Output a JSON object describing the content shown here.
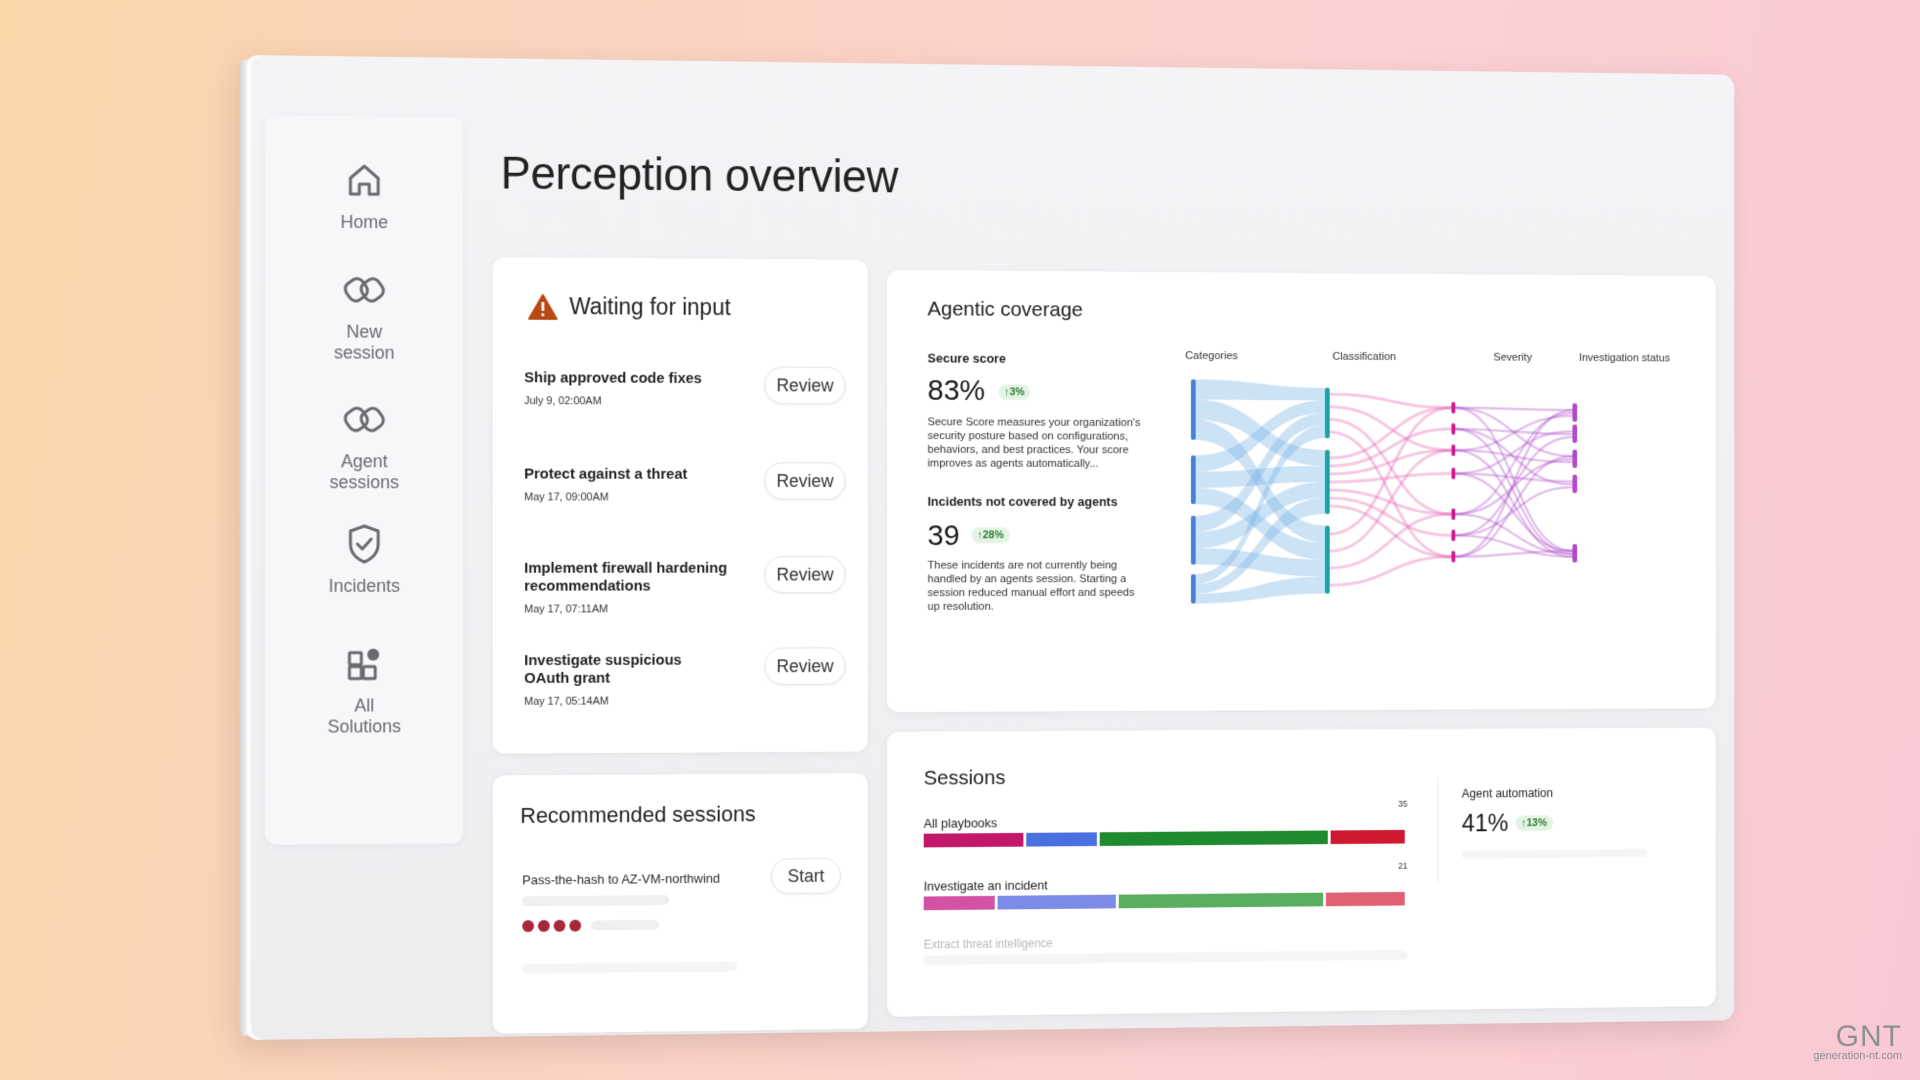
{
  "page": {
    "title": "Perception overview"
  },
  "sidebar": {
    "items": [
      {
        "label": "Home",
        "icon": "home-icon"
      },
      {
        "label": "New\nsession",
        "icon": "sessions-icon"
      },
      {
        "label": "Agent\nsessions",
        "icon": "sessions-icon"
      },
      {
        "label": "Incidents",
        "icon": "shield-check-icon"
      },
      {
        "label": "All\nSolutions",
        "icon": "apps-icon"
      }
    ]
  },
  "waiting": {
    "title": "Waiting for input",
    "icon": "warning-icon",
    "items": [
      {
        "name": "Ship approved code fixes",
        "date": "July 9, 02:00AM",
        "action": "Review"
      },
      {
        "name": "Protect against a threat",
        "date": "May 17, 09:00AM",
        "action": "Review"
      },
      {
        "name": "Implement firewall hardening recommendations",
        "date": "May 17, 07:11AM",
        "action": "Review"
      },
      {
        "name": "Investigate suspicious OAuth grant",
        "date": "May 17, 05:14AM",
        "action": "Review"
      }
    ]
  },
  "agentic": {
    "title": "Agentic coverage",
    "secure_score": {
      "label": "Secure score",
      "value": "83%",
      "delta": "↑3%",
      "description": "Secure Score measures your organization's security posture based on configurations, behaviors, and best practices. Your score improves as agents automatically..."
    },
    "incidents": {
      "label": "Incidents not covered by agents",
      "value": "39",
      "delta": "↑28%",
      "description": "These incidents are not currently being handled by an agents session. Starting a session reduced manual effort and speeds up resolution."
    },
    "sankey_headers": [
      "Categories",
      "Classification",
      "Severity",
      "Investigation status"
    ],
    "colors": {
      "blue": "#7ab3e6",
      "teal": "#1aa3a3",
      "pink": "#e85fb0",
      "purple": "#b04ac8",
      "node_blue": "#4a7fd6",
      "node_magenta": "#d4198f"
    }
  },
  "recommended": {
    "title": "Recommended sessions",
    "item": {
      "label": "Pass-the-hash to AZ-VM-northwind",
      "action": "Start"
    }
  },
  "sessions": {
    "title": "Sessions",
    "rows": [
      {
        "label": "All playbooks",
        "count": "35",
        "segments": [
          {
            "color": "#c2186b",
            "fraction": 0.21
          },
          {
            "color": "#4a6fe0",
            "fraction": 0.15
          },
          {
            "color": "#1f8a2e",
            "fraction": 0.48
          },
          {
            "color": "#d0192f",
            "fraction": 0.16
          }
        ]
      },
      {
        "label": "Investigate an incident",
        "count": "21",
        "segments": [
          {
            "color": "#d452a4",
            "fraction": 0.15
          },
          {
            "color": "#7c8be8",
            "fraction": 0.25
          },
          {
            "color": "#59ad5f",
            "fraction": 0.43
          },
          {
            "color": "#e06173",
            "fraction": 0.17
          }
        ]
      },
      {
        "label": "Extract threat intelligence",
        "count": "",
        "segments": []
      }
    ],
    "automation": {
      "label": "Agent automation",
      "value": "41%",
      "delta": "↑13%"
    }
  },
  "watermark": {
    "logo": "GNT",
    "site": "generation-nt.com"
  }
}
